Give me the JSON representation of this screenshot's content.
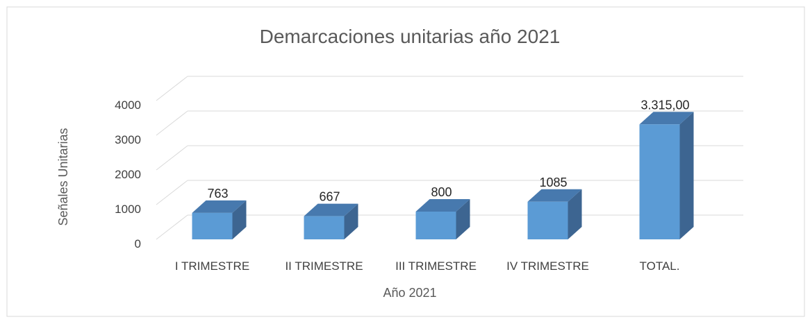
{
  "chart_data": {
    "type": "bar3d",
    "title": "Demarcaciones unitarias año 2021",
    "x_label": "Año 2021",
    "y_label": "Señales Unitarias",
    "categories": [
      "I TRIMESTRE",
      "II TRIMESTRE",
      "III TRIMESTRE",
      "IV TRIMESTRE",
      "TOTAL."
    ],
    "values": [
      763,
      667,
      800,
      1085,
      3315
    ],
    "value_labels": [
      "763",
      "667",
      "800",
      "1085",
      "3.315,00"
    ],
    "color": "#5b9bd5",
    "ylim": [
      0,
      4000
    ],
    "yticks": [
      0,
      1000,
      2000,
      3000,
      4000
    ],
    "grid": true
  }
}
